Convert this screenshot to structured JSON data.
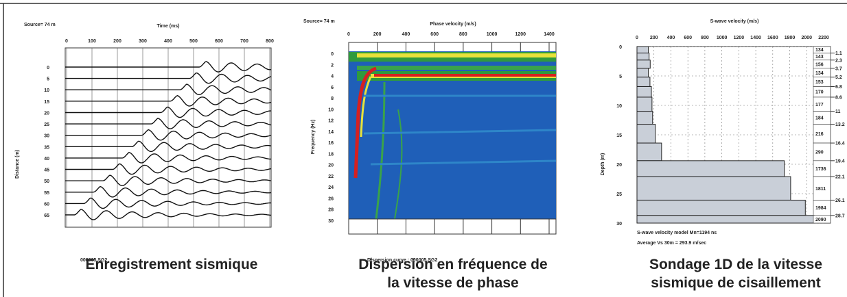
{
  "panels": [
    {
      "source": "Source= 74 m",
      "x_title": "Time (ms)",
      "x_ticks": [
        0,
        100,
        200,
        300,
        400,
        500,
        600,
        700,
        800
      ],
      "y_title": "Distance (m)",
      "y_ticks": [
        0,
        5,
        10,
        15,
        20,
        25,
        30,
        35,
        40,
        45,
        50,
        55,
        60,
        65
      ],
      "file": "000005.SG2",
      "caption": [
        "Enregistrement sismique"
      ]
    },
    {
      "source": "Source= 74 m",
      "x_title": "Phase velocity (m/s)",
      "x_ticks": [
        0,
        200,
        400,
        600,
        800,
        1000,
        1200,
        1400
      ],
      "y_title": "Frequency (Hz)",
      "y_ticks": [
        0,
        2,
        4,
        6,
        8,
        10,
        12,
        14,
        16,
        18,
        20,
        22,
        24,
        26,
        28,
        30
      ],
      "file": "Dispersion curve : 000005.SG2",
      "caption": [
        "Dispersion en fréquence de",
        "la vitesse de phase"
      ]
    },
    {
      "x_title": "S-wave velocity (m/s)",
      "x_ticks": [
        0,
        200,
        400,
        600,
        800,
        1000,
        1200,
        1400,
        1600,
        1800,
        2000,
        2200
      ],
      "y_title": "Depth (m)",
      "y_ticks": [
        0,
        5,
        10,
        15,
        20,
        25,
        30
      ],
      "velocities": [
        134,
        143,
        156,
        134,
        153,
        170,
        177,
        184,
        216,
        290,
        1736,
        1811,
        1984,
        2090
      ],
      "depths": [
        1.1,
        2.3,
        3.7,
        5.2,
        6.8,
        8.6,
        11.0,
        13.2,
        16.4,
        19.4,
        22.1,
        26.1,
        28.7
      ],
      "notes": [
        "S-wave velocity model   Mn=1194 ns",
        "Average Vs 30m = 293.9 m/sec"
      ],
      "caption": [
        "Sondage 1D de la vitesse",
        "sismique de cisaillement"
      ]
    }
  ]
}
